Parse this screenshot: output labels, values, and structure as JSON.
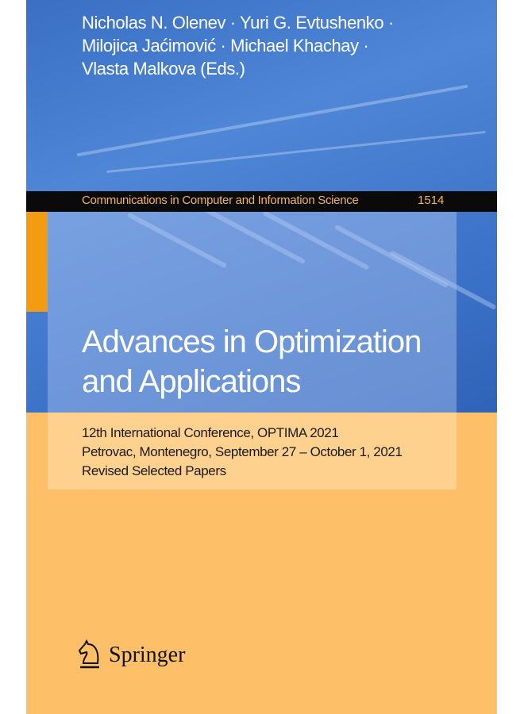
{
  "cover": {
    "authors": [
      "Nicholas N. Olenev · Yuri G. Evtushenko ·",
      "Milojica Jaćimović · Michael Khachay ·",
      "Vlasta Malkova (Eds.)"
    ],
    "series": "Communications in Computer and Information Science",
    "volume": "1514",
    "title": [
      "Advances in Optimization",
      "and Applications"
    ],
    "subtitle": [
      "12th International Conference, OPTIMA 2021",
      "Petrovac, Montenegro, September 27 – October 1, 2021",
      "Revised Selected Papers"
    ],
    "publisher": "Springer",
    "publisher_logo_icon": "knight-horse-icon",
    "colors": {
      "blue": "#3d74c9",
      "orange": "#fdbf68",
      "accent": "#f39c12",
      "band": "#0a0a0a"
    }
  }
}
